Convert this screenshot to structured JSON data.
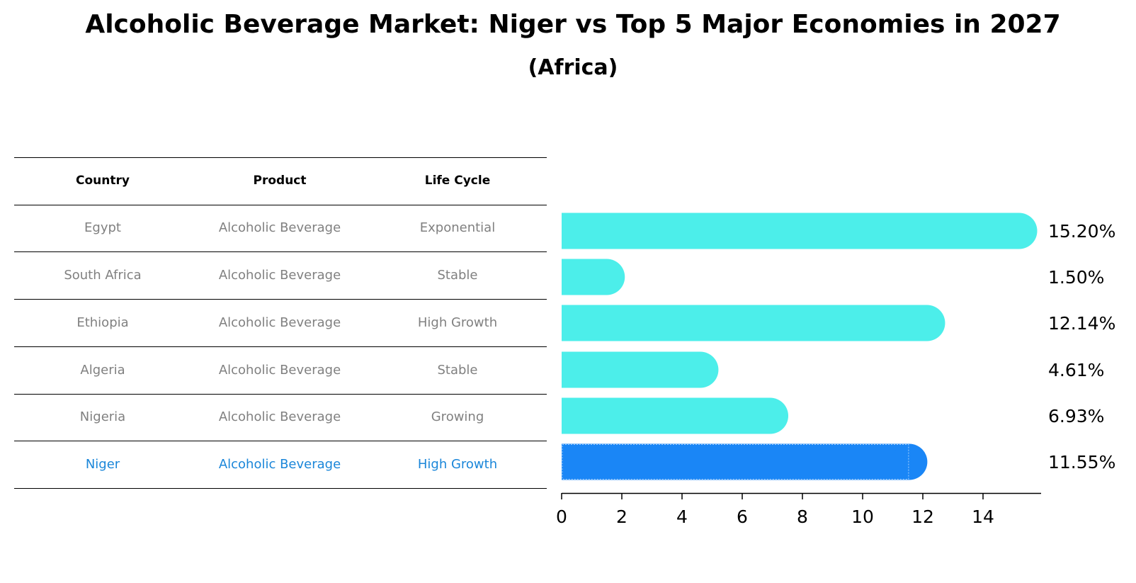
{
  "title": "Alcoholic Beverage Market: Niger vs Top 5 Major Economies in 2027",
  "subtitle": "(Africa)",
  "table": {
    "headers": [
      "Country",
      "Product",
      "Life Cycle"
    ],
    "rows": [
      [
        "Egypt",
        "Alcoholic Beverage",
        "Exponential"
      ],
      [
        "South Africa",
        "Alcoholic Beverage",
        "Stable"
      ],
      [
        "Ethiopia",
        "Alcoholic Beverage",
        "High Growth"
      ],
      [
        "Algeria",
        "Alcoholic Beverage",
        "Stable"
      ],
      [
        "Nigeria",
        "Alcoholic Beverage",
        "Growing"
      ],
      [
        "Niger",
        "Alcoholic Beverage",
        "High Growth"
      ]
    ],
    "highlight_row": 5
  },
  "chart_data": {
    "type": "bar",
    "orientation": "horizontal",
    "categories": [
      "Egypt",
      "South Africa",
      "Ethiopia",
      "Algeria",
      "Nigeria",
      "Niger"
    ],
    "values": [
      15.2,
      1.5,
      12.14,
      4.61,
      6.93,
      11.55
    ],
    "labels": [
      "15.20%",
      "1.50%",
      "12.14%",
      "4.61%",
      "6.93%",
      "11.55%"
    ],
    "xlim": [
      0,
      16
    ],
    "xticks": [
      0,
      2,
      4,
      6,
      8,
      10,
      12,
      14
    ],
    "highlight": "Niger",
    "colors": {
      "default": "#4ceeea",
      "highlight": "#1a86f6",
      "text": "#000000"
    }
  }
}
